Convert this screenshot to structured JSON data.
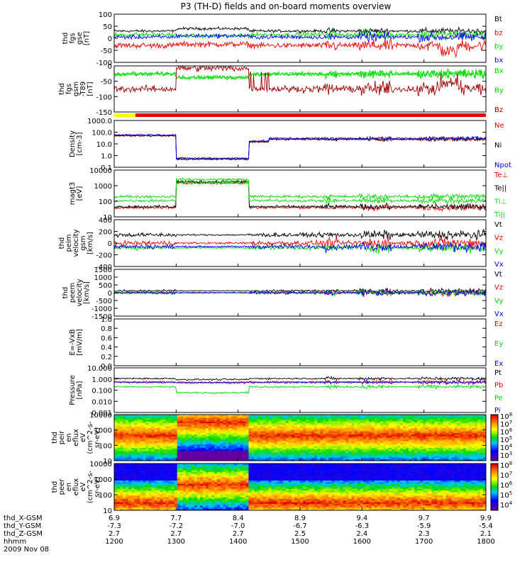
{
  "title": "P3 (TH-D) fields and on-board moments overview",
  "colors": {
    "black": "#000000",
    "red": "#ee0000",
    "green": "#00dd00",
    "blue": "#0000ee",
    "darkred": "#a00000",
    "yellow": "#ffff00"
  },
  "chart_data": [
    {
      "id": "fgs_gse",
      "type": "line",
      "ylabel": [
        "thd",
        "fgs",
        "gse",
        "[nT]"
      ],
      "ylim": [
        -100,
        100
      ],
      "yticks": [
        "100",
        "50",
        "0",
        "-50",
        "-100"
      ],
      "series": [
        {
          "name": "Bt",
          "color": "black"
        },
        {
          "name": "bz",
          "color": "red"
        },
        {
          "name": "by",
          "color": "green"
        },
        {
          "name": "bx",
          "color": "blue"
        }
      ]
    },
    {
      "id": "fgs_gsm",
      "type": "line",
      "ylabel": [
        "thd",
        "fgs",
        "gsm",
        "-T89",
        "[nT]"
      ],
      "ylim": [
        -175,
        25
      ],
      "yticks": [
        "0",
        "-50",
        "-100",
        "-150"
      ],
      "series": [
        {
          "name": "Bx",
          "color": "green"
        },
        {
          "name": "By",
          "color": "green"
        },
        {
          "name": "Bz",
          "color": "darkred"
        }
      ]
    },
    {
      "id": "density",
      "type": "line",
      "scale": "log",
      "ylabel": [
        "Density",
        "[cm-3]"
      ],
      "ylim": [
        0.1,
        1000
      ],
      "yticks": [
        "1000.0",
        "100.0",
        "10.0",
        "1.0",
        "0.1"
      ],
      "series": [
        {
          "name": "Ne",
          "color": "red"
        },
        {
          "name": "Ni",
          "color": "black"
        },
        {
          "name": "Npot",
          "color": "blue"
        }
      ]
    },
    {
      "id": "temperature",
      "type": "line",
      "scale": "log",
      "ylabel": [
        "magt3",
        "[eV]"
      ],
      "ylim": [
        10,
        10000
      ],
      "yticks": [
        "10000",
        "1000",
        "100",
        "10"
      ],
      "series": [
        {
          "name": "Te⊥",
          "color": "red"
        },
        {
          "name": "Te||",
          "color": "black"
        },
        {
          "name": "Ti⊥",
          "color": "green"
        },
        {
          "name": "Ti||",
          "color": "green"
        }
      ]
    },
    {
      "id": "peim_velocity",
      "type": "line",
      "ylabel": [
        "thd",
        "peim",
        "velocity",
        "gsm",
        "[km/s]"
      ],
      "ylim": [
        -400,
        400
      ],
      "yticks": [
        "400",
        "200",
        "0",
        "-200",
        "-400"
      ],
      "series": [
        {
          "name": "Vt",
          "color": "black"
        },
        {
          "name": "Vz",
          "color": "red"
        },
        {
          "name": "Vy",
          "color": "green"
        },
        {
          "name": "Vx",
          "color": "blue"
        }
      ]
    },
    {
      "id": "peem_velocity",
      "type": "line",
      "ylabel": [
        "thd",
        "peem",
        "velocity",
        "[km/s]"
      ],
      "ylim": [
        -1500,
        1500
      ],
      "yticks": [
        "1500",
        "1000",
        "500",
        "0",
        "-500",
        "-1000",
        "-1500"
      ],
      "series": [
        {
          "name": "Vt",
          "color": "black"
        },
        {
          "name": "Vz",
          "color": "red"
        },
        {
          "name": "Vy",
          "color": "green"
        },
        {
          "name": "Vx",
          "color": "blue"
        }
      ]
    },
    {
      "id": "efield",
      "type": "line",
      "ylabel": [
        "E=-VxB",
        "[mV/m]"
      ],
      "ylim": [
        0,
        1
      ],
      "yticks": [
        "1.0",
        "0.8",
        "0.6",
        "0.4",
        "0.2",
        "0.0"
      ],
      "series": [
        {
          "name": "Ez",
          "color": "red"
        },
        {
          "name": "Ey",
          "color": "green"
        },
        {
          "name": "Ex",
          "color": "blue"
        }
      ]
    },
    {
      "id": "pressure",
      "type": "line",
      "scale": "log",
      "ylabel": [
        "Pressure",
        "[nPa]"
      ],
      "ylim": [
        0.001,
        10
      ],
      "yticks": [
        "10.000",
        "1.000",
        "0.100",
        "0.010",
        "0.001"
      ],
      "series": [
        {
          "name": "Pt",
          "color": "black"
        },
        {
          "name": "Pb",
          "color": "red"
        },
        {
          "name": "Pe",
          "color": "green"
        },
        {
          "name": "Pi",
          "color": "blue"
        }
      ]
    },
    {
      "id": "peir_spec",
      "type": "heatmap",
      "scale": "log",
      "ylabel": [
        "thd",
        "peir",
        "en",
        "eflux",
        "eV",
        "(cm^2-s-",
        "sr-eV)"
      ],
      "ylim": [
        10,
        10000
      ],
      "yticks": [
        "10000",
        "1000",
        "100",
        "10"
      ],
      "colorbar": [
        "10^8",
        "10^7",
        "10^6",
        "10^5",
        "10^4",
        "10^3"
      ]
    },
    {
      "id": "peer_spec",
      "type": "heatmap",
      "scale": "log",
      "ylabel": [
        "thd",
        "peer",
        "en",
        "eflux",
        "eV",
        "(cm^2-s-",
        "sr-eV)"
      ],
      "ylim": [
        10,
        10000
      ],
      "yticks": [
        "10000",
        "1000",
        "100",
        "10"
      ],
      "colorbar": [
        "10^8",
        "10^7",
        "10^6",
        "10^5",
        "10^4"
      ]
    }
  ],
  "xaxis": {
    "labels": [
      "thd_X-GSM",
      "thd_Y-GSM",
      "thd_Z-GSM",
      "hhmm",
      "2009 Nov 08"
    ],
    "ticks": [
      {
        "x": "6.9",
        "y": "-7.3",
        "z": "2.7",
        "t": "1200"
      },
      {
        "x": "7.7",
        "y": "-7.2",
        "z": "2.7",
        "t": "1300"
      },
      {
        "x": "8.4",
        "y": "-7.0",
        "z": "2.7",
        "t": "1400"
      },
      {
        "x": "8.9",
        "y": "-6.7",
        "z": "2.5",
        "t": "1500"
      },
      {
        "x": "9.4",
        "y": "-6.3",
        "z": "2.4",
        "t": "1600"
      },
      {
        "x": "9.7",
        "y": "-5.9",
        "z": "2.3",
        "t": "1700"
      },
      {
        "x": "9.9",
        "y": "-5.4",
        "z": "2.1",
        "t": "1800"
      }
    ]
  }
}
